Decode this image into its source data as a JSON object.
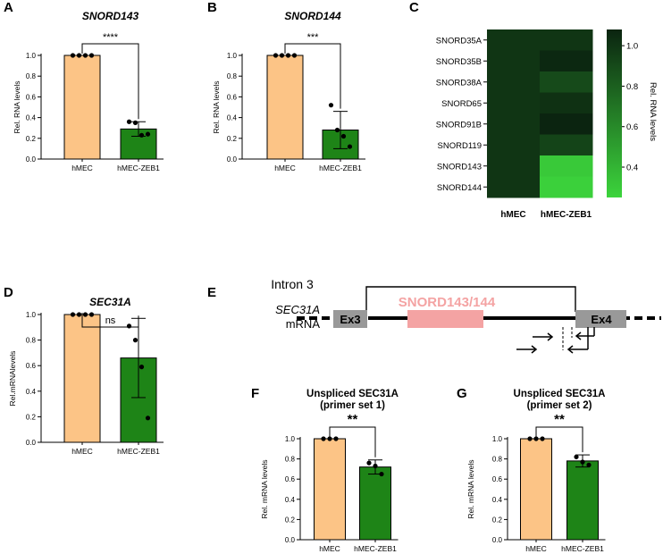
{
  "colors": {
    "hmec": "#FCC486",
    "zeb1": "#1E8417",
    "heat_high": "#0B2410",
    "heat_low": "#3CD43C",
    "gene_box": "#999999",
    "snord_box": "#F4A3A3",
    "snord_text": "#F4A3A3"
  },
  "chart_data": [
    {
      "id": "A",
      "panel_label": "A",
      "type": "bar",
      "title": "SNORD143",
      "title_italic": true,
      "categories": [
        "hMEC",
        "hMEC-ZEB1"
      ],
      "values": [
        1.0,
        0.29
      ],
      "error": [
        0,
        0.07
      ],
      "points": [
        [
          1.0,
          1.0,
          1.0,
          1.0
        ],
        [
          0.36,
          0.35,
          0.23,
          0.24
        ]
      ],
      "ylabel": "Rel. RNA levels",
      "ylim": [
        0,
        1.0
      ],
      "yticks": [
        "0.0",
        "0.2",
        "0.4",
        "0.6",
        "0.8",
        "1.0"
      ],
      "significance": "****"
    },
    {
      "id": "B",
      "panel_label": "B",
      "type": "bar",
      "title": "SNORD144",
      "title_italic": true,
      "categories": [
        "hMEC",
        "hMEC-ZEB1"
      ],
      "values": [
        1.0,
        0.28
      ],
      "error": [
        0,
        0.18
      ],
      "points": [
        [
          1.0,
          1.0,
          1.0,
          1.0
        ],
        [
          0.52,
          0.28,
          0.22,
          0.12
        ]
      ],
      "ylabel": "Rel. RNA levels",
      "ylim": [
        0,
        1.0
      ],
      "yticks": [
        "0.0",
        "0.2",
        "0.4",
        "0.6",
        "0.8",
        "1.0"
      ],
      "significance": "***"
    },
    {
      "id": "C",
      "panel_label": "C",
      "type": "heatmap",
      "rows": [
        "SNORD35A",
        "SNORD35B",
        "SNORD38A",
        "SNORD65",
        "SNORD91B",
        "SNORD119",
        "SNORD143",
        "SNORD144"
      ],
      "columns": [
        "hMEC",
        "hMEC-ZEB1"
      ],
      "values": [
        [
          1.0,
          1.0
        ],
        [
          1.0,
          1.06
        ],
        [
          1.0,
          0.9
        ],
        [
          1.0,
          1.02
        ],
        [
          1.0,
          1.08
        ],
        [
          1.0,
          0.93
        ],
        [
          1.0,
          0.3
        ],
        [
          1.0,
          0.27
        ]
      ],
      "colorbar_label": "Rel. RNA levels",
      "colorbar_range": [
        0.25,
        1.08
      ],
      "colorbar_ticks": [
        0.4,
        0.6,
        0.8,
        1.0
      ],
      "colorbar_tick_labels": [
        "0.4",
        "0.6",
        "0.8",
        "1.0"
      ]
    },
    {
      "id": "D",
      "panel_label": "D",
      "type": "bar",
      "title": "SEC31A",
      "title_italic": true,
      "categories": [
        "hMEC",
        "hMEC-ZEB1"
      ],
      "values": [
        1.0,
        0.66
      ],
      "error": [
        0,
        0.31
      ],
      "points": [
        [
          1.0,
          1.0,
          1.0,
          1.0
        ],
        [
          0.91,
          0.8,
          0.59,
          0.19
        ]
      ],
      "ylabel": "Rel.mRNAlevels",
      "ylim": [
        0,
        1.0
      ],
      "yticks": [
        "0.0",
        "0.2",
        "0.4",
        "0.6",
        "0.8",
        "1.0"
      ],
      "significance": "ns"
    },
    {
      "id": "F",
      "panel_label": "F",
      "type": "bar",
      "title": "Unspliced SEC31A",
      "subtitle": "(primer set 1)",
      "categories": [
        "hMEC",
        "hMEC-ZEB1"
      ],
      "values": [
        1.0,
        0.72
      ],
      "error": [
        0,
        0.07
      ],
      "points": [
        [
          1.0,
          1.0,
          1.0
        ],
        [
          0.76,
          0.73,
          0.65
        ]
      ],
      "ylabel": "Rel. mRNA levels",
      "ylim": [
        0,
        1.0
      ],
      "yticks": [
        "0.0",
        "0.2",
        "0.4",
        "0.6",
        "0.8",
        "1.0"
      ],
      "significance": "**"
    },
    {
      "id": "G",
      "panel_label": "G",
      "type": "bar",
      "title": "Unspliced SEC31A",
      "subtitle": "(primer set 2)",
      "categories": [
        "hMEC",
        "hMEC-ZEB1"
      ],
      "values": [
        1.0,
        0.78
      ],
      "error": [
        0,
        0.06
      ],
      "points": [
        [
          1.0,
          1.0,
          1.0
        ],
        [
          0.82,
          0.77,
          0.74
        ]
      ],
      "ylabel": "Rel. mRNA levels",
      "ylim": [
        0,
        1.0
      ],
      "yticks": [
        "0.0",
        "0.2",
        "0.4",
        "0.6",
        "0.8",
        "1.0"
      ],
      "significance": "**"
    }
  ],
  "diagram": {
    "panel_label": "E",
    "gene_name": "SEC31A",
    "transcript": "mRNA",
    "intron_label": "Intron 3",
    "exon_left": "Ex3",
    "exon_right": "Ex4",
    "snord_label": "SNORD143/144"
  }
}
